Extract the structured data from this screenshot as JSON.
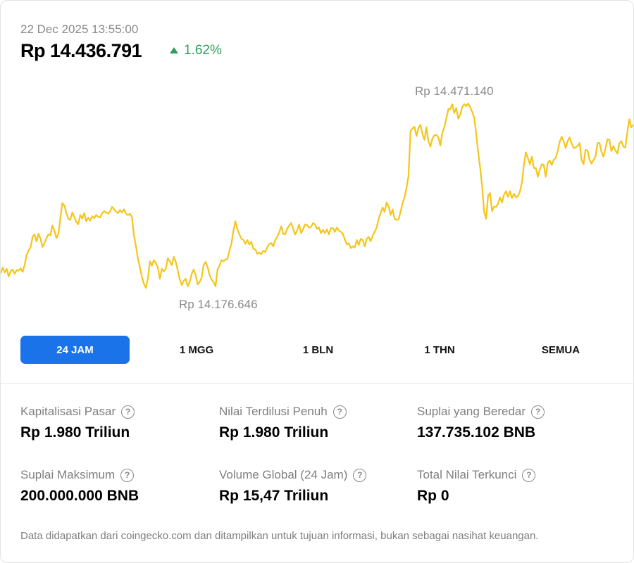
{
  "header": {
    "timestamp": "22 Dec 2025 13:55:00",
    "price": "Rp 14.436.791",
    "change": "1.62%",
    "change_direction": "up",
    "change_icon": "triangle-up-icon",
    "up_color": "#2e9e5b"
  },
  "chart_data": {
    "type": "line",
    "line_color": "#f5c518",
    "high_label": "Rp 14.471.140",
    "low_label": "Rp 14.176.646",
    "high_value": 14471140,
    "low_value": 14176646,
    "grid": false,
    "values": [
      14200000,
      14209000,
      14201000,
      14207000,
      14195000,
      14203000,
      14206000,
      14199000,
      14205000,
      14204000,
      14208000,
      14202000,
      14213000,
      14229000,
      14236000,
      14241000,
      14258000,
      14262000,
      14251000,
      14263000,
      14255000,
      14242000,
      14248000,
      14256000,
      14262000,
      14261000,
      14276000,
      14268000,
      14256000,
      14263000,
      14288000,
      14312000,
      14308000,
      14296000,
      14287000,
      14285000,
      14297000,
      14290000,
      14282000,
      14278000,
      14293000,
      14287000,
      14296000,
      14283000,
      14289000,
      14284000,
      14291000,
      14288000,
      14293000,
      14290000,
      14289000,
      14296000,
      14299000,
      14297000,
      14295000,
      14299000,
      14306000,
      14302000,
      14298000,
      14296000,
      14301000,
      14297000,
      14302000,
      14295000,
      14293000,
      14295000,
      14289000,
      14260000,
      14243000,
      14223000,
      14209000,
      14194000,
      14183000,
      14176646,
      14192000,
      14219000,
      14212000,
      14221000,
      14216000,
      14209000,
      14191000,
      14207000,
      14203000,
      14207000,
      14224000,
      14219000,
      14213000,
      14226000,
      14218000,
      14205000,
      14190000,
      14181000,
      14188000,
      14191000,
      14179000,
      14186000,
      14199000,
      14206000,
      14197000,
      14182000,
      14186000,
      14193000,
      14213000,
      14218000,
      14210000,
      14197000,
      14190000,
      14186000,
      14179000,
      14206000,
      14212000,
      14221000,
      14219000,
      14222000,
      14223000,
      14236000,
      14248000,
      14268000,
      14283000,
      14270000,
      14262000,
      14255000,
      14253000,
      14247000,
      14253000,
      14246000,
      14250000,
      14239000,
      14238000,
      14231000,
      14233000,
      14230000,
      14236000,
      14234000,
      14241000,
      14247000,
      14248000,
      14243000,
      14253000,
      14258000,
      14265000,
      14275000,
      14263000,
      14262000,
      14271000,
      14276000,
      14280000,
      14271000,
      14262000,
      14268000,
      14278000,
      14264000,
      14270000,
      14278000,
      14277000,
      14273000,
      14274000,
      14280000,
      14278000,
      14271000,
      14273000,
      14264000,
      14269000,
      14264000,
      14270000,
      14262000,
      14272000,
      14272000,
      14266000,
      14273000,
      14268000,
      14266000,
      14263000,
      14254000,
      14246000,
      14248000,
      14240000,
      14243000,
      14241000,
      14253000,
      14245000,
      14255000,
      14253000,
      14243000,
      14255000,
      14258000,
      14251000,
      14260000,
      14266000,
      14273000,
      14287000,
      14296000,
      14305000,
      14298000,
      14313000,
      14307000,
      14293000,
      14302000,
      14287000,
      14285000,
      14286000,
      14298000,
      14312000,
      14321000,
      14337000,
      14355000,
      14427000,
      14431000,
      14434000,
      14419000,
      14432000,
      14437000,
      14423000,
      14413000,
      14433000,
      14411000,
      14402000,
      14415000,
      14420000,
      14421000,
      14417000,
      14404000,
      14424000,
      14433000,
      14447000,
      14462000,
      14462000,
      14470000,
      14456000,
      14464000,
      14447000,
      14453000,
      14465000,
      14470000,
      14467000,
      14471140,
      14465000,
      14458000,
      14449000,
      14423000,
      14394000,
      14369000,
      14339000,
      14298000,
      14287000,
      14324000,
      14328000,
      14299000,
      14306000,
      14306000,
      14311000,
      14321000,
      14313000,
      14325000,
      14331000,
      14322000,
      14331000,
      14320000,
      14327000,
      14321000,
      14323000,
      14330000,
      14345000,
      14373000,
      14393000,
      14384000,
      14374000,
      14386000,
      14368000,
      14368000,
      14354000,
      14366000,
      14374000,
      14373000,
      14354000,
      14376000,
      14380000,
      14373000,
      14381000,
      14384000,
      14395000,
      14410000,
      14418000,
      14411000,
      14400000,
      14411000,
      14417000,
      14407000,
      14400000,
      14401000,
      14403000,
      14408000,
      14381000,
      14374000,
      14397000,
      14396000,
      14381000,
      14375000,
      14381000,
      14386000,
      14408000,
      14408000,
      14394000,
      14386000,
      14399000,
      14414000,
      14413000,
      14395000,
      14403000,
      14396000,
      14391000,
      14407000,
      14411000,
      14402000,
      14401000,
      14425000,
      14446000,
      14433000,
      14436791
    ]
  },
  "ranges": {
    "items": [
      {
        "label": "24 JAM",
        "active": true
      },
      {
        "label": "1 MGG",
        "active": false
      },
      {
        "label": "1 BLN",
        "active": false
      },
      {
        "label": "1 THN",
        "active": false
      },
      {
        "label": "SEMUA",
        "active": false
      }
    ],
    "active_color": "#1a73e8"
  },
  "stats": {
    "market_cap": {
      "label": "Kapitalisasi Pasar",
      "value": "Rp 1.980 Triliun",
      "icon": "question-icon"
    },
    "fdv": {
      "label": "Nilai Terdilusi Penuh",
      "value": "Rp 1.980 Triliun",
      "icon": "question-icon"
    },
    "circulating": {
      "label": "Suplai yang Beredar",
      "value": "137.735.102 BNB",
      "icon": "question-icon"
    },
    "max_supply": {
      "label": "Suplai Maksimum",
      "value": "200.000.000 BNB",
      "icon": "question-icon"
    },
    "volume": {
      "label": "Volume Global (24 Jam)",
      "value": "Rp 15,47 Triliun",
      "icon": "question-icon"
    },
    "tvl": {
      "label": "Total Nilai Terkunci",
      "value": "Rp 0",
      "icon": "question-icon"
    }
  },
  "footer": {
    "disclaimer": "Data didapatkan dari coingecko.com dan ditampilkan untuk tujuan informasi, bukan sebagai nasihat keuangan."
  }
}
